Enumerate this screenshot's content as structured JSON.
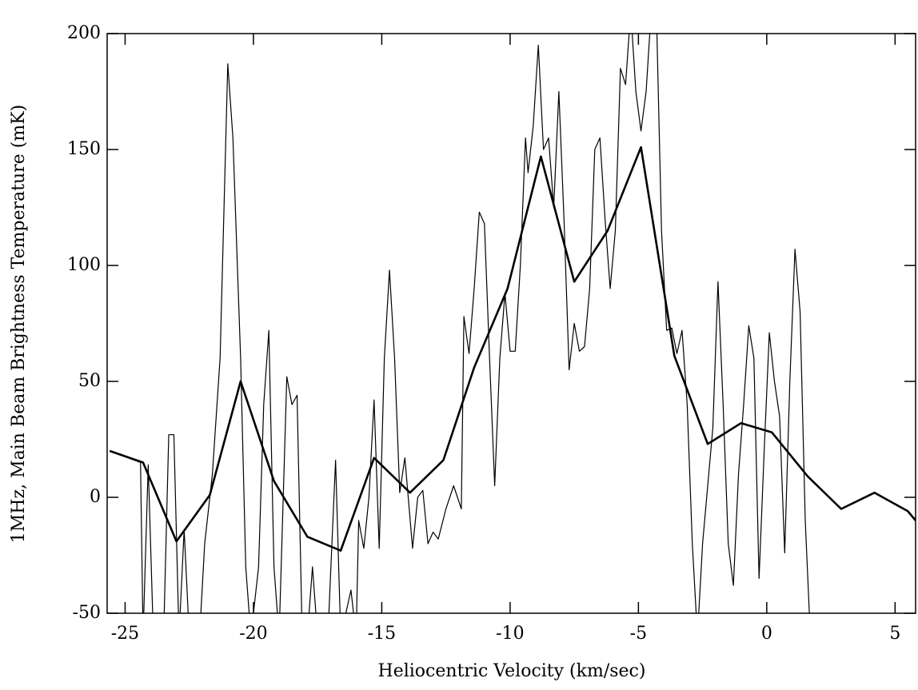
{
  "chart_data": {
    "type": "line",
    "xlabel": "Heliocentric Velocity (km/sec)",
    "ylabel": "1MHz, Main Beam Brightness Temperature (mK)",
    "xlim": [
      -25.7,
      5.8
    ],
    "ylim": [
      -50,
      200
    ],
    "xticks": [
      -25,
      -20,
      -15,
      -10,
      -5,
      0,
      5
    ],
    "yticks": [
      -50,
      0,
      50,
      100,
      150,
      200
    ],
    "series": [
      {
        "color": "#000000",
        "width": 1.2,
        "x": [
          -25.6,
          -24.4,
          -24.3,
          -24.1,
          -23.9,
          -23.5,
          -23.3,
          -23.1,
          -22.9,
          -22.7,
          -22.5,
          -22.1,
          -21.9,
          -21.6,
          -21.3,
          -21.0,
          -20.8,
          -20.5,
          -20.3,
          -20.1,
          -19.8,
          -19.6,
          -19.4,
          -19.2,
          -19.0,
          -18.7,
          -18.5,
          -18.3,
          -18.1,
          -17.9,
          -17.7,
          -17.5,
          -17.1,
          -16.8,
          -16.6,
          -16.2,
          -16.0,
          -15.9,
          -15.7,
          -15.5,
          -15.3,
          -15.1,
          -14.9,
          -14.7,
          -14.5,
          -14.3,
          -14.1,
          -13.8,
          -13.6,
          -13.4,
          -13.2,
          -13.0,
          -12.8,
          -12.5,
          -12.2,
          -11.9,
          -11.8,
          -11.6,
          -11.4,
          -11.2,
          -11.0,
          -10.8,
          -10.6,
          -10.4,
          -10.2,
          -10.0,
          -9.8,
          -9.6,
          -9.4,
          -9.3,
          -9.1,
          -8.9,
          -8.7,
          -8.5,
          -8.3,
          -8.1,
          -7.9,
          -7.7,
          -7.5,
          -7.3,
          -7.1,
          -6.9,
          -6.7,
          -6.5,
          -6.3,
          -6.1,
          -5.9,
          -5.7,
          -5.5,
          -5.3,
          -5.1,
          -4.9,
          -4.7,
          -4.5,
          -4.3,
          -4.1,
          -3.9,
          -3.7,
          -3.5,
          -3.3,
          -3.1,
          -2.9,
          -2.7,
          -2.5,
          -2.3,
          -2.1,
          -1.9,
          -1.7,
          -1.5,
          -1.3,
          -1.1,
          -0.9,
          -0.7,
          -0.5,
          -0.3,
          -0.1,
          0.1,
          0.3,
          0.5,
          0.7,
          0.9,
          1.1,
          1.3,
          1.5,
          1.7,
          1.9
        ],
        "values": [
          20,
          15,
          -60,
          14,
          -60,
          -60,
          27,
          27,
          -60,
          -14,
          -60,
          -60,
          -20,
          10,
          60,
          187,
          155,
          60,
          -30,
          -60,
          -30,
          40,
          72,
          -30,
          -60,
          52,
          40,
          44,
          -60,
          -60,
          -30,
          -60,
          -60,
          16,
          -60,
          -40,
          -60,
          -10,
          -22,
          0,
          42,
          -22,
          60,
          98,
          60,
          2,
          17,
          -22,
          0,
          3,
          -20,
          -15,
          -18,
          -5,
          5,
          -5,
          78,
          62,
          90,
          123,
          118,
          60,
          5,
          60,
          88,
          63,
          63,
          100,
          155,
          140,
          160,
          195,
          150,
          155,
          125,
          175,
          120,
          55,
          75,
          63,
          65,
          90,
          150,
          155,
          120,
          90,
          115,
          185,
          178,
          210,
          175,
          158,
          175,
          210,
          210,
          115,
          72,
          73,
          62,
          72,
          40,
          -20,
          -60,
          -20,
          5,
          30,
          93,
          40,
          -20,
          -38,
          10,
          40,
          74,
          60,
          -35,
          20,
          71,
          50,
          35,
          -24,
          50,
          107,
          80,
          -10,
          -60,
          -60
        ]
      },
      {
        "color": "#000000",
        "width": 2.6,
        "x": [
          -25.6,
          -24.3,
          -23.0,
          -21.7,
          -20.5,
          -19.2,
          -17.9,
          -16.6,
          -15.3,
          -13.9,
          -12.6,
          -11.4,
          -10.1,
          -8.8,
          -7.5,
          -6.2,
          -4.9,
          -3.6,
          -2.3,
          -1.0,
          0.2,
          1.6,
          2.9,
          4.2,
          5.5,
          5.8
        ],
        "values": [
          20,
          15,
          -19,
          1,
          50,
          7,
          -17,
          -23,
          17,
          2,
          16,
          56,
          90,
          147,
          93,
          115,
          151,
          61,
          23,
          32,
          28,
          9,
          -5,
          2,
          -6,
          -10
        ]
      }
    ]
  }
}
